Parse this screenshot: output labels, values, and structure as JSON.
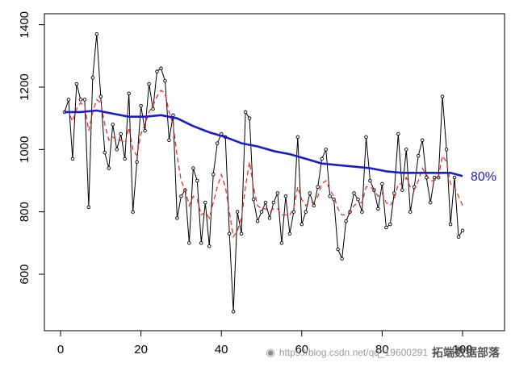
{
  "chart_data": {
    "type": "line",
    "xlim": [
      0,
      100
    ],
    "ylim": [
      450,
      1420
    ],
    "x_ticks": [
      0,
      20,
      40,
      60,
      80,
      100
    ],
    "y_ticks": [
      600,
      800,
      1000,
      1200,
      1400
    ],
    "x_tick_labels": [
      "0",
      "20",
      "40",
      "60",
      "80",
      "100"
    ],
    "y_tick_labels": [
      "600",
      "800",
      "1000",
      "1200",
      "1400"
    ],
    "grid": false,
    "end_label": "80%",
    "series": [
      {
        "style": "raw-points-line",
        "color": "#000000",
        "x": [
          1,
          2,
          3,
          4,
          5,
          6,
          7,
          8,
          9,
          10,
          11,
          12,
          13,
          14,
          15,
          16,
          17,
          18,
          19,
          20,
          21,
          22,
          23,
          24,
          25,
          26,
          27,
          28,
          29,
          30,
          31,
          32,
          33,
          34,
          35,
          36,
          37,
          38,
          39,
          40,
          41,
          42,
          43,
          44,
          45,
          46,
          47,
          48,
          49,
          50,
          51,
          52,
          53,
          54,
          55,
          56,
          57,
          58,
          59,
          60,
          61,
          62,
          63,
          64,
          65,
          66,
          67,
          68,
          69,
          70,
          71,
          72,
          73,
          74,
          75,
          76,
          77,
          78,
          79,
          80,
          81,
          82,
          83,
          84,
          85,
          86,
          87,
          88,
          89,
          90,
          91,
          92,
          93,
          94,
          95,
          96,
          97,
          98,
          99,
          100
        ],
        "values": [
          1120,
          1160,
          970,
          1210,
          1160,
          1160,
          815,
          1230,
          1370,
          1170,
          990,
          940,
          1080,
          1000,
          1050,
          970,
          1180,
          800,
          960,
          1140,
          1060,
          1210,
          1130,
          1250,
          1260,
          1220,
          1030,
          1110,
          780,
          850,
          870,
          700,
          940,
          900,
          700,
          830,
          690,
          920,
          1020,
          1050,
          1040,
          730,
          480,
          800,
          730,
          1120,
          1100,
          840,
          770,
          800,
          830,
          780,
          830,
          860,
          700,
          850,
          730,
          800,
          1040,
          760,
          800,
          860,
          820,
          880,
          970,
          1000,
          850,
          840,
          680,
          650,
          770,
          800,
          860,
          840,
          800,
          1040,
          900,
          870,
          810,
          890,
          750,
          760,
          860,
          1050,
          870,
          1000,
          800,
          880,
          980,
          1030,
          910,
          830,
          910,
          910,
          1170,
          1000,
          760,
          910,
          720,
          740
        ]
      },
      {
        "style": "smoothed-dashed",
        "color": "#e03030",
        "x": [
          1,
          2,
          3,
          4,
          5,
          6,
          7,
          8,
          9,
          10,
          11,
          12,
          13,
          14,
          15,
          16,
          17,
          18,
          19,
          20,
          21,
          22,
          23,
          24,
          25,
          26,
          27,
          28,
          29,
          30,
          31,
          32,
          33,
          34,
          35,
          36,
          37,
          38,
          39,
          40,
          41,
          42,
          43,
          44,
          45,
          46,
          47,
          48,
          49,
          50,
          51,
          52,
          53,
          54,
          55,
          56,
          57,
          58,
          59,
          60,
          61,
          62,
          63,
          64,
          65,
          66,
          67,
          68,
          69,
          70,
          71,
          72,
          73,
          74,
          75,
          76,
          77,
          78,
          79,
          80,
          81,
          82,
          83,
          84,
          85,
          86,
          87,
          88,
          89,
          90,
          91,
          92,
          93,
          94,
          95,
          96,
          97,
          98,
          99,
          100
        ],
        "values": [
          1120,
          1120,
          1090,
          1130,
          1150,
          1140,
          1060,
          1120,
          1160,
          1150,
          1080,
          1030,
          1040,
          1030,
          1030,
          1020,
          1070,
          1000,
          980,
          1050,
          1080,
          1120,
          1140,
          1170,
          1190,
          1180,
          1120,
          1080,
          980,
          900,
          870,
          820,
          850,
          840,
          790,
          800,
          780,
          830,
          880,
          920,
          880,
          800,
          720,
          740,
          780,
          880,
          960,
          880,
          820,
          810,
          810,
          800,
          810,
          810,
          790,
          790,
          790,
          810,
          880,
          840,
          820,
          830,
          830,
          850,
          890,
          900,
          870,
          850,
          810,
          790,
          790,
          800,
          820,
          830,
          830,
          880,
          880,
          870,
          850,
          860,
          830,
          820,
          840,
          890,
          890,
          910,
          880,
          870,
          900,
          940,
          920,
          900,
          900,
          910,
          980,
          960,
          890,
          880,
          850,
          820
        ]
      },
      {
        "style": "trend-80pct",
        "color": "#1a1ad0",
        "x": [
          1,
          5,
          9,
          13,
          17,
          21,
          25,
          29,
          33,
          37,
          41,
          45,
          49,
          53,
          57,
          61,
          65,
          69,
          73,
          77,
          81,
          85,
          89,
          93,
          97,
          100
        ],
        "values": [
          1120,
          1120,
          1125,
          1115,
          1105,
          1105,
          1110,
          1100,
          1075,
          1055,
          1040,
          1020,
          1010,
          995,
          985,
          970,
          955,
          950,
          945,
          940,
          930,
          925,
          925,
          925,
          925,
          915
        ]
      }
    ]
  },
  "watermark": {
    "icon": "wechat-icon",
    "url_text": "https://blog.csdn.net/qq_19600291",
    "brand_text": "拓端数据部落"
  }
}
